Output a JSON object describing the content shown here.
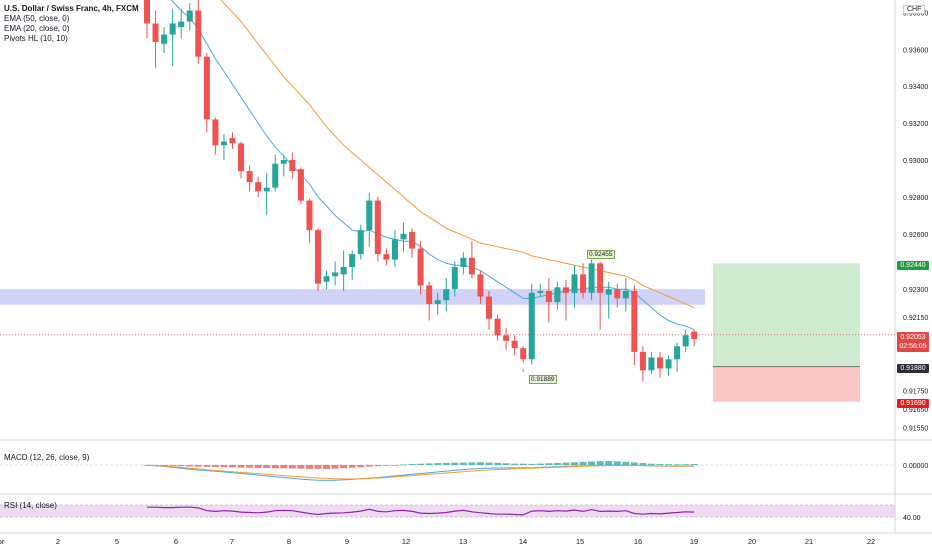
{
  "legend": {
    "title": "U.S. Dollar / Swiss Franc, 4h, FXCM",
    "ema50": "EMA (50, close, 0)",
    "ema20": "EMA (20, close, 0)",
    "pivots": "Pivots HL (10, 10)"
  },
  "currency": "CHF",
  "price_boxes": {
    "target": "0.92440",
    "current": "0.92053",
    "countdown": "02:56:05",
    "entry": "0.91880",
    "stop": "0.91690"
  },
  "pivot_labels": {
    "high": "0.92455",
    "low": "0.91889"
  },
  "macd": {
    "label": "MACD (12, 26, close, 9)",
    "tick": "0.00000"
  },
  "rsi": {
    "label": "RSI (14, close)",
    "tick": "40.00"
  },
  "colors": {
    "bull": "#26a69a",
    "bear": "#ef5350",
    "ema20": "#4aa8d8",
    "ema50": "#f39b36",
    "zone": "#8f94ee",
    "target": "#1e9e3a",
    "current": "#e04848",
    "entry": "#2a2e39",
    "stop": "#e02020",
    "rsi": "#8e24aa"
  },
  "chart_data": {
    "type": "candlestick",
    "symbol": "U.S. Dollar / Swiss Franc",
    "timeframe": "4h",
    "y_axis_ticks": [
      "0.93800",
      "0.93600",
      "0.93400",
      "0.93200",
      "0.93000",
      "0.92800",
      "0.92600",
      "0.92300",
      "0.92150",
      "0.91750",
      "0.91650",
      "0.91550"
    ],
    "x_axis_ticks": [
      "pr",
      "2",
      "5",
      "6",
      "7",
      "8",
      "9",
      "12",
      "13",
      "14",
      "15",
      "16",
      "19",
      "20",
      "21",
      "22"
    ],
    "candles": [
      {
        "o": 0.939,
        "h": 0.9405,
        "l": 0.9366,
        "c": 0.9374
      },
      {
        "o": 0.9374,
        "h": 0.9381,
        "l": 0.935,
        "c": 0.9364
      },
      {
        "o": 0.9363,
        "h": 0.9372,
        "l": 0.9358,
        "c": 0.9368
      },
      {
        "o": 0.9368,
        "h": 0.9382,
        "l": 0.9351,
        "c": 0.9374
      },
      {
        "o": 0.9372,
        "h": 0.9382,
        "l": 0.9366,
        "c": 0.9375
      },
      {
        "o": 0.9375,
        "h": 0.9385,
        "l": 0.937,
        "c": 0.9381
      },
      {
        "o": 0.9381,
        "h": 0.9388,
        "l": 0.9352,
        "c": 0.9356
      },
      {
        "o": 0.9356,
        "h": 0.9358,
        "l": 0.9315,
        "c": 0.9322
      },
      {
        "o": 0.9322,
        "h": 0.9323,
        "l": 0.9303,
        "c": 0.9308
      },
      {
        "o": 0.9308,
        "h": 0.9314,
        "l": 0.93,
        "c": 0.931
      },
      {
        "o": 0.9312,
        "h": 0.9315,
        "l": 0.9306,
        "c": 0.9309
      },
      {
        "o": 0.9309,
        "h": 0.931,
        "l": 0.929,
        "c": 0.9294
      },
      {
        "o": 0.9294,
        "h": 0.9297,
        "l": 0.9283,
        "c": 0.9288
      },
      {
        "o": 0.9288,
        "h": 0.9291,
        "l": 0.928,
        "c": 0.9283
      },
      {
        "o": 0.9283,
        "h": 0.9293,
        "l": 0.927,
        "c": 0.9285
      },
      {
        "o": 0.9285,
        "h": 0.9303,
        "l": 0.9283,
        "c": 0.9298
      },
      {
        "o": 0.9298,
        "h": 0.9303,
        "l": 0.9291,
        "c": 0.93
      },
      {
        "o": 0.93,
        "h": 0.9304,
        "l": 0.929,
        "c": 0.9294
      },
      {
        "o": 0.9295,
        "h": 0.9296,
        "l": 0.9276,
        "c": 0.9278
      },
      {
        "o": 0.9278,
        "h": 0.9279,
        "l": 0.9255,
        "c": 0.9262
      },
      {
        "o": 0.9262,
        "h": 0.9263,
        "l": 0.9229,
        "c": 0.9233
      },
      {
        "o": 0.9234,
        "h": 0.924,
        "l": 0.923,
        "c": 0.9237
      },
      {
        "o": 0.9237,
        "h": 0.9245,
        "l": 0.9232,
        "c": 0.9239
      },
      {
        "o": 0.9238,
        "h": 0.9251,
        "l": 0.9229,
        "c": 0.9242
      },
      {
        "o": 0.9242,
        "h": 0.9251,
        "l": 0.9235,
        "c": 0.9249
      },
      {
        "o": 0.9249,
        "h": 0.9265,
        "l": 0.9246,
        "c": 0.9262
      },
      {
        "o": 0.9262,
        "h": 0.9282,
        "l": 0.9253,
        "c": 0.9278
      },
      {
        "o": 0.9278,
        "h": 0.928,
        "l": 0.9245,
        "c": 0.9249
      },
      {
        "o": 0.9249,
        "h": 0.9252,
        "l": 0.9243,
        "c": 0.9246
      },
      {
        "o": 0.9246,
        "h": 0.9262,
        "l": 0.9242,
        "c": 0.9257
      },
      {
        "o": 0.9257,
        "h": 0.9266,
        "l": 0.925,
        "c": 0.926
      },
      {
        "o": 0.9261,
        "h": 0.9263,
        "l": 0.9247,
        "c": 0.9252
      },
      {
        "o": 0.9252,
        "h": 0.9256,
        "l": 0.9227,
        "c": 0.9232
      },
      {
        "o": 0.9232,
        "h": 0.9234,
        "l": 0.9213,
        "c": 0.9222
      },
      {
        "o": 0.9222,
        "h": 0.9228,
        "l": 0.9216,
        "c": 0.9224
      },
      {
        "o": 0.9224,
        "h": 0.9236,
        "l": 0.9218,
        "c": 0.923
      },
      {
        "o": 0.923,
        "h": 0.9245,
        "l": 0.9226,
        "c": 0.9242
      },
      {
        "o": 0.9242,
        "h": 0.925,
        "l": 0.9238,
        "c": 0.9247
      },
      {
        "o": 0.9247,
        "h": 0.9256,
        "l": 0.9236,
        "c": 0.9238
      },
      {
        "o": 0.9238,
        "h": 0.924,
        "l": 0.9222,
        "c": 0.9226
      },
      {
        "o": 0.9226,
        "h": 0.9229,
        "l": 0.9208,
        "c": 0.9214
      },
      {
        "o": 0.9214,
        "h": 0.9216,
        "l": 0.9202,
        "c": 0.9205
      },
      {
        "o": 0.9205,
        "h": 0.9209,
        "l": 0.9197,
        "c": 0.9202
      },
      {
        "o": 0.9202,
        "h": 0.9205,
        "l": 0.9194,
        "c": 0.9198
      },
      {
        "o": 0.9198,
        "h": 0.9199,
        "l": 0.919,
        "c": 0.9192
      },
      {
        "o": 0.9192,
        "h": 0.9233,
        "l": 0.9189,
        "c": 0.9228
      },
      {
        "o": 0.9228,
        "h": 0.9233,
        "l": 0.9226,
        "c": 0.9229
      },
      {
        "o": 0.9229,
        "h": 0.9236,
        "l": 0.9212,
        "c": 0.9223
      },
      {
        "o": 0.9223,
        "h": 0.9234,
        "l": 0.9219,
        "c": 0.9231
      },
      {
        "o": 0.9231,
        "h": 0.9235,
        "l": 0.9213,
        "c": 0.9228
      },
      {
        "o": 0.9228,
        "h": 0.9243,
        "l": 0.922,
        "c": 0.9238
      },
      {
        "o": 0.9238,
        "h": 0.9244,
        "l": 0.9225,
        "c": 0.9228
      },
      {
        "o": 0.9228,
        "h": 0.9246,
        "l": 0.9224,
        "c": 0.9244
      },
      {
        "o": 0.9244,
        "h": 0.9245,
        "l": 0.9208,
        "c": 0.9228
      },
      {
        "o": 0.9227,
        "h": 0.9234,
        "l": 0.9214,
        "c": 0.923
      },
      {
        "o": 0.923,
        "h": 0.9233,
        "l": 0.922,
        "c": 0.9225
      },
      {
        "o": 0.9225,
        "h": 0.9236,
        "l": 0.9218,
        "c": 0.9229
      },
      {
        "o": 0.9229,
        "h": 0.9232,
        "l": 0.9189,
        "c": 0.9196
      },
      {
        "o": 0.9196,
        "h": 0.9199,
        "l": 0.918,
        "c": 0.9186
      },
      {
        "o": 0.9186,
        "h": 0.9196,
        "l": 0.9184,
        "c": 0.9193
      },
      {
        "o": 0.9193,
        "h": 0.9196,
        "l": 0.9182,
        "c": 0.9187
      },
      {
        "o": 0.9187,
        "h": 0.9194,
        "l": 0.9183,
        "c": 0.9192
      },
      {
        "o": 0.9192,
        "h": 0.9201,
        "l": 0.9185,
        "c": 0.9199
      },
      {
        "o": 0.9199,
        "h": 0.9208,
        "l": 0.9196,
        "c": 0.9205
      },
      {
        "o": 0.9207,
        "h": 0.9208,
        "l": 0.9199,
        "c": 0.9203
      }
    ],
    "ema20": [
      0.94,
      0.9395,
      0.939,
      0.9386,
      0.9381,
      0.9377,
      0.9371,
      0.9363,
      0.9355,
      0.9348,
      0.9341,
      0.9334,
      0.9327,
      0.932,
      0.9313,
      0.9307,
      0.9302,
      0.9297,
      0.9292,
      0.9287,
      0.928,
      0.9275,
      0.927,
      0.9266,
      0.9262,
      0.9261,
      0.9262,
      0.926,
      0.9258,
      0.9257,
      0.9256,
      0.9256,
      0.9253,
      0.9249,
      0.9246,
      0.9244,
      0.9243,
      0.9243,
      0.9242,
      0.924,
      0.9237,
      0.9234,
      0.9231,
      0.9228,
      0.9225,
      0.9225,
      0.9226,
      0.9227,
      0.9228,
      0.9229,
      0.923,
      0.923,
      0.9231,
      0.9231,
      0.9231,
      0.923,
      0.923,
      0.9228,
      0.9224,
      0.922,
      0.9216,
      0.9213,
      0.9211,
      0.921,
      0.9208
    ],
    "ema50": [
      0.942,
      0.9417,
      0.9414,
      0.9411,
      0.9407,
      0.9403,
      0.9399,
      0.9395,
      0.939,
      0.9385,
      0.938,
      0.9375,
      0.9369,
      0.9363,
      0.9357,
      0.9351,
      0.9345,
      0.934,
      0.9335,
      0.933,
      0.9324,
      0.9318,
      0.9313,
      0.9308,
      0.9304,
      0.93,
      0.9296,
      0.9292,
      0.9288,
      0.9284,
      0.928,
      0.9276,
      0.9272,
      0.9269,
      0.9266,
      0.9263,
      0.9261,
      0.9259,
      0.9257,
      0.9255,
      0.9254,
      0.9253,
      0.9252,
      0.9251,
      0.925,
      0.9248,
      0.9247,
      0.9246,
      0.9245,
      0.9244,
      0.9243,
      0.9242,
      0.9241,
      0.924,
      0.9239,
      0.9238,
      0.9237,
      0.9235,
      0.9232,
      0.923,
      0.9228,
      0.9226,
      0.9224,
      0.9222,
      0.922
    ],
    "zone": {
      "low": 0.92215,
      "high": 0.923
    },
    "position": {
      "target": 0.9244,
      "entry": 0.9188,
      "stop": 0.9169
    },
    "pivots": [
      {
        "label": "0.92455",
        "price": 0.92455,
        "type": "high",
        "candle": 52
      },
      {
        "label": "0.91889",
        "price": 0.91889,
        "type": "low",
        "candle": 44
      }
    ],
    "current_price": 0.92053,
    "macd_hist": [
      0,
      -0.1,
      -0.3,
      -0.5,
      -0.7,
      -0.9,
      -1.0,
      -1.1,
      -1.2,
      -1.3,
      -1.5,
      -1.6,
      -1.7,
      -1.8,
      -1.9,
      -2.0,
      -2.1,
      -2.2,
      -2.3,
      -2.4,
      -2.4,
      -2.5,
      -2.3,
      -2.0,
      -1.7,
      -1.4,
      -1.0,
      -0.7,
      -0.3,
      0,
      0.3,
      0.6,
      0.8,
      1.0,
      1.2,
      1.3,
      1.4,
      1.5,
      1.6,
      1.7,
      1.5,
      1.3,
      1.1,
      0.9,
      0.8,
      0.7,
      0.9,
      1.1,
      1.3,
      1.5,
      1.7,
      1.9,
      2.2,
      2.4,
      2.5,
      2.3,
      2.0,
      1.6,
      1.2,
      0.8,
      0.6,
      0.5,
      0.4,
      0.5,
      0.6
    ],
    "macd_line": [
      -0.2,
      -0.5,
      -0.9,
      -1.4,
      -2.0,
      -2.6,
      -3.1,
      -3.5,
      -3.9,
      -4.3,
      -4.8,
      -5.3,
      -5.8,
      -6.3,
      -6.8,
      -7.3,
      -7.8,
      -8.3,
      -8.8,
      -9.2,
      -9.5,
      -9.6,
      -9.5,
      -9.3,
      -9.0,
      -8.6,
      -8.2,
      -7.8,
      -7.3,
      -6.8,
      -6.3,
      -5.8,
      -5.3,
      -4.8,
      -4.3,
      -3.8,
      -3.3,
      -2.9,
      -2.5,
      -2.2,
      -2.0,
      -1.9,
      -1.8,
      -1.8,
      -1.8,
      -1.7,
      -1.5,
      -1.3,
      -1.1,
      -0.9,
      -0.7,
      -0.5,
      -0.3,
      -0.2,
      -0.1,
      0.0,
      -0.1,
      -0.2,
      -0.4,
      -0.6,
      -0.7,
      -0.8,
      -0.8,
      -0.8,
      -0.7
    ],
    "macd_signal": [
      -0.1,
      -0.3,
      -0.6,
      -1.0,
      -1.5,
      -2.0,
      -2.5,
      -3.0,
      -3.4,
      -3.8,
      -4.2,
      -4.6,
      -5.0,
      -5.4,
      -5.8,
      -6.2,
      -6.6,
      -7.0,
      -7.4,
      -7.8,
      -8.1,
      -8.4,
      -8.6,
      -8.7,
      -8.7,
      -8.6,
      -8.4,
      -8.1,
      -7.8,
      -7.4,
      -7.0,
      -6.6,
      -6.2,
      -5.8,
      -5.4,
      -5.0,
      -4.6,
      -4.2,
      -3.8,
      -3.4,
      -3.1,
      -2.8,
      -2.6,
      -2.4,
      -2.2,
      -2.0,
      -1.8,
      -1.6,
      -1.4,
      -1.2,
      -1.0,
      -0.8,
      -0.6,
      -0.5,
      -0.4,
      -0.3,
      -0.3,
      -0.3,
      -0.4,
      -0.5,
      -0.6,
      -0.7,
      -0.7,
      -0.7,
      -0.7
    ],
    "rsi": [
      48,
      48,
      47,
      47,
      48,
      48,
      46,
      38,
      36,
      38,
      37,
      34,
      33,
      32,
      34,
      38,
      39,
      38,
      34,
      30,
      27,
      30,
      31,
      32,
      34,
      37,
      42,
      36,
      35,
      38,
      39,
      36,
      31,
      30,
      31,
      33,
      37,
      39,
      35,
      32,
      30,
      28,
      28,
      27,
      26,
      37,
      38,
      36,
      38,
      37,
      40,
      36,
      41,
      36,
      37,
      36,
      38,
      30,
      28,
      30,
      29,
      31,
      33,
      35,
      34
    ]
  }
}
